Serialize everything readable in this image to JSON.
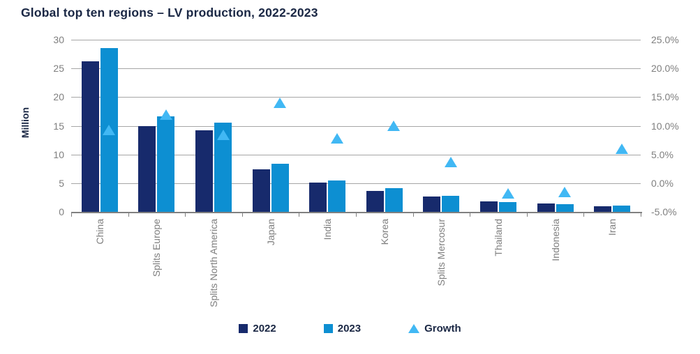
{
  "title": "Global top ten regions – LV production, 2022-2023",
  "colors": {
    "bar_2022": "#172a6c",
    "bar_2023": "#0d8fd2",
    "growth_marker": "#41b8f4",
    "gridline": "#a6a6a6",
    "axis_line": "#808080",
    "tick_text": "#7f7f7f",
    "heading_text": "#1a2744"
  },
  "chart_data": {
    "type": "bar",
    "subtype": "grouped-bar-with-scatter-growth-overlay",
    "title": "Global top ten regions – LV production, 2022-2023",
    "categories": [
      "China",
      "Splits Europe",
      "Splits North America",
      "Japan",
      "India",
      "Korea",
      "Splits Mercosur",
      "Thailand",
      "Indonesia",
      "Iran"
    ],
    "series": [
      {
        "name": "2022",
        "type": "bar",
        "axis": "left",
        "color": "#172a6c",
        "values": [
          26.2,
          14.9,
          14.2,
          7.4,
          5.1,
          3.7,
          2.7,
          1.8,
          1.4,
          1.0
        ]
      },
      {
        "name": "2023",
        "type": "bar",
        "axis": "left",
        "color": "#0d8fd2",
        "values": [
          28.6,
          16.6,
          15.5,
          8.4,
          5.5,
          4.1,
          2.8,
          1.75,
          1.38,
          1.06
        ]
      },
      {
        "name": "Growth",
        "type": "scatter-triangle",
        "axis": "right",
        "color": "#41b8f4",
        "values_pct": [
          9.3,
          11.9,
          8.4,
          14.0,
          7.8,
          10.0,
          3.7,
          -1.8,
          -1.5,
          6.0
        ]
      }
    ],
    "y_left": {
      "label": "Million",
      "min": 0,
      "max": 30,
      "tick_step": 5,
      "ticks": [
        "0",
        "5",
        "10",
        "15",
        "20",
        "25",
        "30"
      ]
    },
    "y_right": {
      "min": -5,
      "max": 25,
      "tick_step": 5,
      "ticks": [
        "-5.0%",
        "0.0%",
        "5.0%",
        "10.0%",
        "15.0%",
        "20.0%",
        "25.0%"
      ]
    },
    "grid": true,
    "legend_position": "bottom"
  }
}
